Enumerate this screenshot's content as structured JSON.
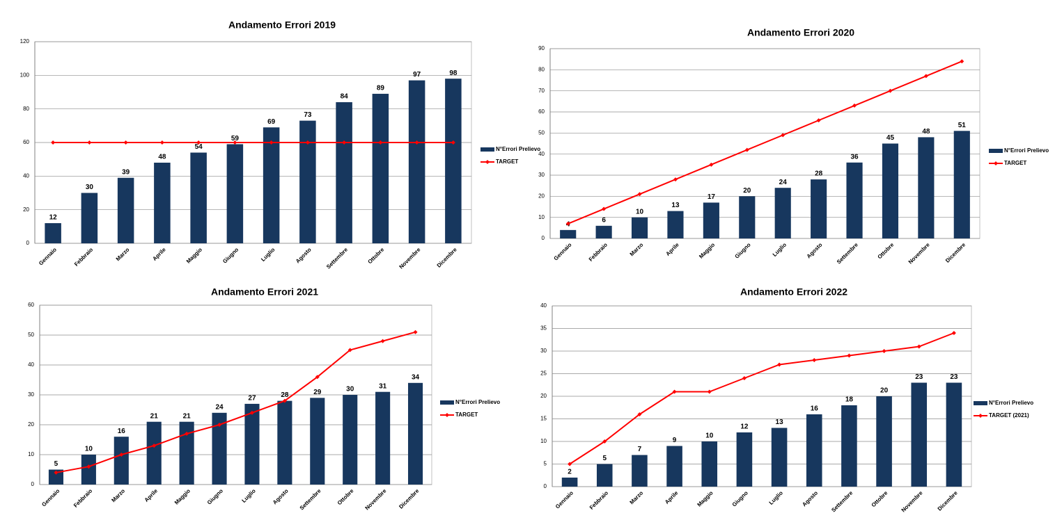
{
  "chart_data": [
    {
      "type": "combo",
      "title": "Andamento Errori  2019",
      "categories": [
        "Gennaio",
        "Febbraio",
        "Marzo",
        "Aprile",
        "Maggio",
        "Giugno",
        "Luglio",
        "Agosto",
        "Settembre",
        "Ottobre",
        "Novembre",
        "Dicembre"
      ],
      "series": [
        {
          "name": "N°Errori Prelievo",
          "type": "bar",
          "color": "#17375e",
          "values": [
            12,
            30,
            39,
            48,
            54,
            59,
            69,
            73,
            84,
            89,
            97,
            98
          ]
        },
        {
          "name": "TARGET",
          "type": "line",
          "color": "#ff0000",
          "values": [
            60,
            60,
            60,
            60,
            60,
            60,
            60,
            60,
            60,
            60,
            60,
            60
          ]
        }
      ],
      "ylim": [
        0,
        120
      ],
      "yticks": [
        0,
        20,
        40,
        60,
        80,
        100,
        120
      ],
      "grid": true,
      "legend": "right"
    },
    {
      "type": "combo",
      "title": "Andamento Errori  2020",
      "categories": [
        "Gennaio",
        "Febbraio",
        "Marzo",
        "Aprile",
        "Maggio",
        "Giugno",
        "Luglio",
        "Agosto",
        "Settembre",
        "Ottobre",
        "Novembre",
        "Dicembre"
      ],
      "series": [
        {
          "name": "N°Errori Prelievo",
          "type": "bar",
          "color": "#17375e",
          "values": [
            4,
            6,
            10,
            13,
            17,
            20,
            24,
            28,
            36,
            45,
            48,
            51
          ]
        },
        {
          "name": "TARGET",
          "type": "line",
          "color": "#ff0000",
          "values": [
            7,
            14,
            21,
            28,
            35,
            42,
            49,
            56,
            63,
            70,
            77,
            84
          ]
        }
      ],
      "ylim": [
        0,
        90
      ],
      "yticks": [
        0,
        10,
        20,
        30,
        40,
        50,
        60,
        70,
        80,
        90
      ],
      "grid": true,
      "legend": "right"
    },
    {
      "type": "combo",
      "title": "Andamento Errori  2021",
      "categories": [
        "Gennaio",
        "Febbraio",
        "Marzo",
        "Aprile",
        "Maggio",
        "Giugno",
        "Luglio",
        "Agosto",
        "Settembre",
        "Ottobre",
        "Novembre",
        "Dicembre"
      ],
      "series": [
        {
          "name": "N°Errori Prelievo",
          "type": "bar",
          "color": "#17375e",
          "values": [
            5,
            10,
            16,
            21,
            21,
            24,
            27,
            28,
            29,
            30,
            31,
            34
          ]
        },
        {
          "name": "TARGET",
          "type": "line",
          "color": "#ff0000",
          "values": [
            4,
            6,
            10,
            13,
            17,
            20,
            24,
            28,
            36,
            45,
            48,
            51
          ]
        }
      ],
      "ylim": [
        0,
        60
      ],
      "yticks": [
        0,
        10,
        20,
        30,
        40,
        50,
        60
      ],
      "grid": true,
      "legend": "right"
    },
    {
      "type": "combo",
      "title": "Andamento Errori  2022",
      "categories": [
        "Gennaio",
        "Febbraio",
        "Marzo",
        "Aprile",
        "Maggio",
        "Giugno",
        "Luglio",
        "Agosto",
        "Settembre",
        "Ottobre",
        "Novembre",
        "Dicembre"
      ],
      "series": [
        {
          "name": "N°Errori Prelievo",
          "type": "bar",
          "color": "#17375e",
          "values": [
            2,
            5,
            7,
            9,
            10,
            12,
            13,
            16,
            18,
            20,
            23,
            23
          ]
        },
        {
          "name": "TARGET (2021)",
          "type": "line",
          "color": "#ff0000",
          "values": [
            5,
            10,
            16,
            21,
            21,
            24,
            27,
            28,
            29,
            30,
            31,
            34
          ]
        }
      ],
      "ylim": [
        0,
        40
      ],
      "yticks": [
        0,
        5,
        10,
        15,
        20,
        25,
        30,
        35,
        40
      ],
      "grid": true,
      "legend": "right"
    }
  ]
}
